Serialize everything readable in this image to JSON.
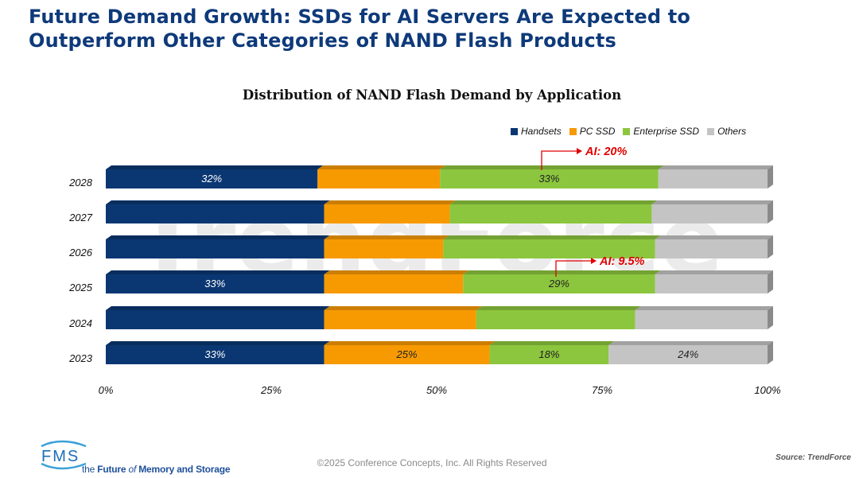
{
  "slide_title": "Future Demand Growth: SSDs for AI Servers Are Expected to Outperform Other Categories of NAND Flash Products",
  "watermark": "TrendForce",
  "chart_data": {
    "type": "bar",
    "orientation": "horizontal",
    "stacked": "percent",
    "title": "Distribution of NAND Flash Demand by Application",
    "categories": [
      "2028",
      "2027",
      "2026",
      "2025",
      "2024",
      "2023"
    ],
    "series": [
      {
        "name": "Handsets",
        "color": "#0a3772",
        "values": [
          32,
          33,
          33,
          33,
          33,
          33
        ],
        "labels": [
          "32%",
          "",
          "",
          "33%",
          "",
          "33%"
        ]
      },
      {
        "name": "PC SSD",
        "color": "#f79a02",
        "values": [
          18.5,
          19,
          18,
          21,
          23,
          25
        ],
        "labels": [
          "",
          "",
          "",
          "",
          "",
          "25%"
        ]
      },
      {
        "name": "Enterprise SSD",
        "color": "#8cc63e",
        "values": [
          33,
          30.5,
          32,
          29,
          24,
          18
        ],
        "labels": [
          "33%",
          "",
          "",
          "29%",
          "",
          "18%"
        ]
      },
      {
        "name": "Others",
        "color": "#c4c4c4",
        "values": [
          16.5,
          17.5,
          17,
          17,
          20,
          24
        ],
        "labels": [
          "",
          "",
          "",
          "",
          "",
          "24%"
        ]
      }
    ],
    "xticks": [
      "0%",
      "25%",
      "50%",
      "75%",
      "100%"
    ],
    "xlim": [
      0,
      100
    ],
    "legend_position": "top-right",
    "annotations": [
      {
        "text": "AI: 20%",
        "category": "2028"
      },
      {
        "text": "AI: 9.5%",
        "category": "2025"
      }
    ]
  },
  "footer": {
    "copyright": "©2025 Conference Concepts, Inc. All Rights Reserved",
    "source": "Source: TrendForce",
    "logo_text": "FMS",
    "tagline_prefix": "the ",
    "tagline_bold": "Future",
    "tagline_mid": " of ",
    "tagline_end": "Memory and Storage",
    "tagline_and": "and",
    "tagline_storage": "Storage"
  },
  "colors": {
    "title": "#0e3a7a",
    "annotation": "#e00000"
  }
}
